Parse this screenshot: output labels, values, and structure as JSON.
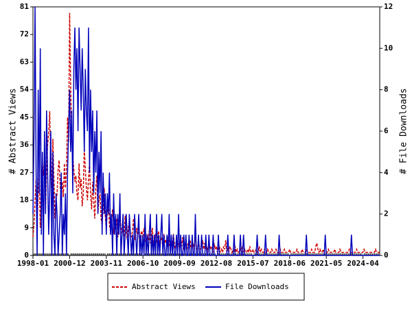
{
  "chart_data": {
    "type": "line",
    "y_label": "# Abstract Views",
    "y2_label": "# File Downloads",
    "ylim": [
      0,
      81
    ],
    "yticks": [
      0,
      9,
      18,
      27,
      36,
      45,
      54,
      63,
      72,
      81
    ],
    "y2lim": [
      0,
      12
    ],
    "y2ticks": [
      0,
      2,
      4,
      6,
      8,
      10,
      12
    ],
    "categories": [
      "1998-01",
      null,
      null,
      null,
      null,
      null,
      null,
      null,
      null,
      null,
      null,
      null,
      null,
      null,
      null,
      null,
      null,
      null,
      null,
      null,
      null,
      null,
      null,
      null,
      null,
      null,
      null,
      null,
      null,
      null,
      null,
      null,
      null,
      null,
      null,
      "2000-12",
      null,
      null,
      null,
      null,
      null,
      null,
      null,
      null,
      null,
      null,
      null,
      null,
      null,
      null,
      null,
      null,
      null,
      null,
      null,
      null,
      null,
      null,
      null,
      null,
      null,
      null,
      null,
      null,
      null,
      null,
      null,
      null,
      null,
      null,
      "2003-11",
      null,
      null,
      null,
      null,
      null,
      null,
      null,
      null,
      null,
      null,
      null,
      null,
      null,
      null,
      null,
      null,
      null,
      null,
      null,
      null,
      null,
      null,
      null,
      null,
      null,
      null,
      null,
      null,
      null,
      null,
      null,
      null,
      null,
      null,
      "2006-10",
      null,
      null,
      null,
      null,
      null,
      null,
      null,
      null,
      null,
      null,
      null,
      null,
      null,
      null,
      null,
      null,
      null,
      null,
      null,
      null,
      null,
      null,
      null,
      null,
      null,
      null,
      null,
      null,
      null,
      null,
      null,
      null,
      null,
      null,
      "2009-09",
      null,
      null,
      null,
      null,
      null,
      null,
      null,
      null,
      null,
      null,
      null,
      null,
      null,
      null,
      null,
      null,
      null,
      null,
      null,
      null,
      null,
      null,
      null,
      null,
      null,
      null,
      null,
      null,
      null,
      null,
      null,
      null,
      null,
      null,
      "2012-08",
      null,
      null,
      null,
      null,
      null,
      null,
      null,
      null,
      null,
      null,
      null,
      null,
      null,
      null,
      null,
      null,
      null,
      null,
      null,
      null,
      null,
      null,
      null,
      null,
      null,
      null,
      null,
      null,
      null,
      null,
      null,
      null,
      null,
      null,
      "2015-07",
      null,
      null,
      null,
      null,
      null,
      null,
      null,
      null,
      null,
      null,
      null,
      null,
      null,
      null,
      null,
      null,
      null,
      null,
      null,
      null,
      null,
      null,
      null,
      null,
      null,
      null,
      null,
      null,
      null,
      null,
      null,
      null,
      null,
      null,
      "2018-06",
      null,
      null,
      null,
      null,
      null,
      null,
      null,
      null,
      null,
      null,
      null,
      null,
      null,
      null,
      null,
      null,
      null,
      null,
      null,
      null,
      null,
      null,
      null,
      null,
      null,
      null,
      null,
      null,
      null,
      null,
      null,
      null,
      null,
      null,
      "2021-05",
      null,
      null,
      null,
      null,
      null,
      null,
      null,
      null,
      null,
      null,
      null,
      null,
      null,
      null,
      null,
      null,
      null,
      null,
      null,
      null,
      null,
      null,
      null,
      null,
      null,
      null,
      null,
      null,
      null,
      null,
      null,
      null,
      null,
      null,
      "2024-04",
      null,
      null,
      null,
      null,
      null,
      null,
      null,
      null,
      null,
      null,
      null,
      null,
      null,
      null,
      null,
      null
    ],
    "series": [
      {
        "name": "Abstract Views",
        "color": "#cc0000",
        "dash": true,
        "values": [
          6,
          10,
          18,
          25,
          12,
          20,
          27,
          9,
          22,
          30,
          26,
          33,
          15,
          28,
          36,
          40,
          47,
          30,
          22,
          38,
          25,
          12,
          18,
          20,
          28,
          31,
          22,
          20,
          24,
          19,
          30,
          22,
          28,
          45,
          37,
          79,
          55,
          40,
          32,
          28,
          24,
          26,
          20,
          18,
          30,
          22,
          25,
          16,
          20,
          35,
          28,
          22,
          18,
          25,
          30,
          20,
          15,
          24,
          18,
          12,
          22,
          26,
          14,
          18,
          20,
          12,
          10,
          16,
          22,
          13,
          9,
          14,
          18,
          10,
          8,
          12,
          15,
          7,
          10,
          9,
          12,
          6,
          8,
          14,
          9,
          7,
          10,
          6,
          13,
          8,
          5,
          9,
          11,
          7,
          6,
          8,
          12,
          5,
          7,
          9,
          6,
          10,
          4,
          7,
          8,
          5,
          9,
          6,
          3,
          7,
          5,
          8,
          4,
          6,
          9,
          3,
          5,
          7,
          4,
          6,
          8,
          3,
          5,
          6,
          2,
          7,
          4,
          5,
          3,
          6,
          4,
          2,
          5,
          3,
          7,
          4,
          2,
          5,
          3,
          4,
          2,
          4,
          3,
          6,
          2,
          3,
          5,
          2,
          4,
          3,
          5,
          2,
          3,
          4,
          2,
          6,
          3,
          2,
          4,
          3,
          2,
          3,
          5,
          2,
          4,
          2,
          3,
          1,
          4,
          2,
          3,
          2,
          1,
          4,
          2,
          3,
          1,
          2,
          3,
          1,
          2,
          1,
          3,
          2,
          5,
          1,
          2,
          1,
          3,
          2,
          1,
          2,
          1,
          3,
          1,
          2,
          1,
          1,
          2,
          1,
          3,
          1,
          2,
          1,
          1,
          2,
          1,
          3,
          1,
          1,
          2,
          1,
          1,
          2,
          1,
          1,
          3,
          1,
          2,
          1,
          1,
          2,
          1,
          1,
          2,
          1,
          1,
          1,
          2,
          1,
          1,
          1,
          2,
          1,
          1,
          1,
          2,
          1,
          1,
          1,
          2,
          1,
          1,
          1,
          1,
          2,
          1,
          1,
          1,
          1,
          1,
          1,
          2,
          1,
          1,
          1,
          1,
          2,
          1,
          1,
          1,
          2,
          1,
          1,
          1,
          1,
          2,
          1,
          1,
          1,
          3,
          4,
          2,
          1,
          2,
          1,
          1,
          2,
          1,
          1,
          1,
          1,
          2,
          1,
          1,
          1,
          1,
          1,
          2,
          1,
          1,
          1,
          1,
          2,
          1,
          1,
          1,
          1,
          1,
          1,
          1,
          1,
          2,
          1,
          1,
          1,
          1,
          1,
          1,
          2,
          1,
          1,
          1,
          1,
          1,
          1,
          2,
          1,
          1,
          1,
          1,
          1,
          1,
          1,
          1,
          1,
          1,
          2,
          1,
          1,
          1,
          1
        ]
      },
      {
        "name": "File Downloads",
        "color": "#0000bb",
        "axis": "y2",
        "values": [
          2,
          6,
          12,
          4,
          0,
          8,
          3,
          10,
          1,
          5,
          0,
          6,
          2,
          7,
          4,
          1,
          3,
          6,
          0,
          5,
          1,
          0,
          3,
          2,
          0,
          1,
          2,
          4,
          0,
          2,
          1,
          3,
          0,
          4,
          6,
          8,
          5,
          7,
          3,
          9,
          11,
          8,
          10,
          6,
          11,
          9,
          7,
          10,
          8,
          5,
          9,
          7,
          6,
          11,
          4,
          8,
          5,
          7,
          3,
          6,
          4,
          7,
          2,
          5,
          3,
          6,
          1,
          4,
          2,
          3,
          1,
          3,
          2,
          4,
          1,
          2,
          0,
          3,
          1,
          2,
          0,
          2,
          1,
          3,
          0,
          1,
          2,
          0,
          1,
          2,
          1,
          0,
          2,
          1,
          0,
          1,
          0,
          2,
          1,
          0,
          1,
          2,
          0,
          1,
          0,
          1,
          0,
          2,
          0,
          1,
          0,
          1,
          2,
          0,
          1,
          0,
          1,
          0,
          2,
          0,
          1,
          0,
          1,
          2,
          0,
          1,
          0,
          0,
          1,
          0,
          2,
          0,
          1,
          0,
          1,
          0,
          0,
          1,
          0,
          2,
          0,
          1,
          0,
          0,
          1,
          0,
          1,
          0,
          0,
          1,
          0,
          0,
          1,
          0,
          0,
          2,
          0,
          0,
          1,
          0,
          0,
          1,
          0,
          0,
          0,
          1,
          0,
          0,
          1,
          0,
          0,
          0,
          1,
          0,
          0,
          0,
          0,
          1,
          0,
          0,
          0,
          0,
          0,
          0,
          0,
          0,
          1,
          0,
          0,
          0,
          0,
          0,
          1,
          0,
          0,
          0,
          0,
          0,
          1,
          0,
          0,
          1,
          0,
          0,
          0,
          0,
          0,
          0,
          0,
          0,
          0,
          0,
          0,
          0,
          1,
          0,
          0,
          0,
          0,
          0,
          0,
          0,
          1,
          0,
          0,
          0,
          0,
          0,
          0,
          0,
          0,
          0,
          0,
          0,
          0,
          1,
          0,
          0,
          0,
          0,
          0,
          0,
          0,
          0,
          0,
          0,
          0,
          0,
          0,
          0,
          0,
          0,
          0,
          0,
          0,
          0,
          0,
          0,
          0,
          0,
          0,
          1,
          0,
          0,
          0,
          0,
          0,
          0,
          0,
          0,
          0,
          0,
          0,
          0,
          0,
          0,
          0,
          0,
          0,
          1,
          0,
          0,
          0,
          0,
          0,
          0,
          0,
          0,
          0,
          0,
          0,
          0,
          0,
          0,
          0,
          0,
          0,
          0,
          0,
          0,
          0,
          0,
          0,
          0,
          1,
          0,
          0,
          0,
          0,
          0,
          0,
          0,
          0,
          0,
          0,
          0,
          0,
          0,
          0,
          0,
          0,
          0,
          0,
          0,
          0,
          0,
          0,
          0,
          0,
          0,
          0,
          0
        ]
      }
    ]
  }
}
